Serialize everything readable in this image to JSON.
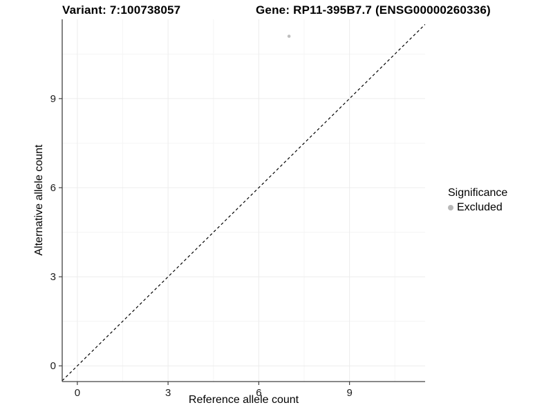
{
  "chart_data": {
    "type": "scatter",
    "title_left": "Variant: 7:100738057",
    "title_right": "Gene: RP11-395B7.7 (ENSG00000260336)",
    "xlabel": "Reference allele count",
    "ylabel": "Alternative allele count",
    "x_ticks": [
      0,
      3,
      6,
      9
    ],
    "y_ticks": [
      0,
      3,
      6,
      9
    ],
    "x_minor_gridlines": [
      1.5,
      4.5,
      7.5,
      10.5
    ],
    "y_minor_gridlines": [
      1.5,
      4.5,
      7.5,
      10.5
    ],
    "xlim": [
      -0.5,
      11.5
    ],
    "ylim": [
      -0.53,
      11.67
    ],
    "points": [
      {
        "x": 7,
        "y": 11.1,
        "series": "Excluded",
        "color": "#bebebe",
        "radius_px": 2.3
      }
    ],
    "abline": {
      "slope": 1,
      "intercept": 0,
      "linetype": "dashed",
      "color": "#000000"
    },
    "legend": {
      "title": "Significance",
      "position": "right",
      "entries": [
        {
          "label": "Excluded",
          "color": "#b8b8b8"
        }
      ]
    },
    "grid": {
      "major_color": "#ececec",
      "minor_color": "#f5f5f5"
    },
    "axis_color": "#404040",
    "tick_label_color": "#1a1a1a",
    "background": "#ffffff"
  }
}
